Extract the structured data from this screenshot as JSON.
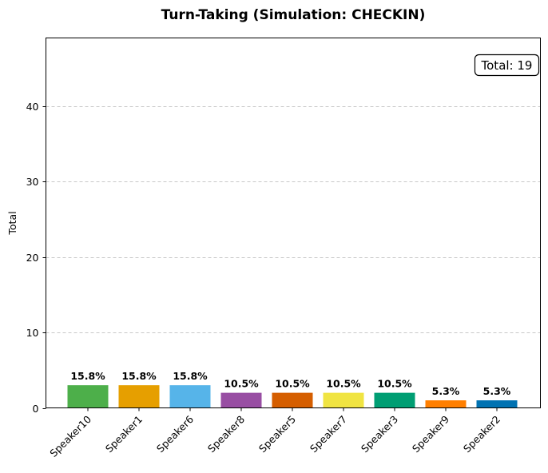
{
  "chart_data": {
    "type": "bar",
    "title": "Turn-Taking (Simulation: CHECKIN)",
    "xlabel": "",
    "ylabel": "Total",
    "ylim": [
      0,
      49
    ],
    "yticks": [
      0,
      10,
      20,
      30,
      40
    ],
    "grid": "y-dashed",
    "categories": [
      "Speaker10",
      "Speaker1",
      "Speaker6",
      "Speaker8",
      "Speaker5",
      "Speaker7",
      "Speaker3",
      "Speaker9",
      "Speaker2"
    ],
    "values": [
      3,
      3,
      3,
      2,
      2,
      2,
      2,
      1,
      1
    ],
    "bar_labels": [
      "15.8%",
      "15.8%",
      "15.8%",
      "10.5%",
      "10.5%",
      "10.5%",
      "10.5%",
      "5.3%",
      "5.3%"
    ],
    "colors": [
      "#4daf4a",
      "#e69f00",
      "#56b4e9",
      "#984ea3",
      "#d55e00",
      "#f0e442",
      "#009e73",
      "#ff7f00",
      "#0072b2"
    ],
    "annotation": "Total: 19"
  }
}
